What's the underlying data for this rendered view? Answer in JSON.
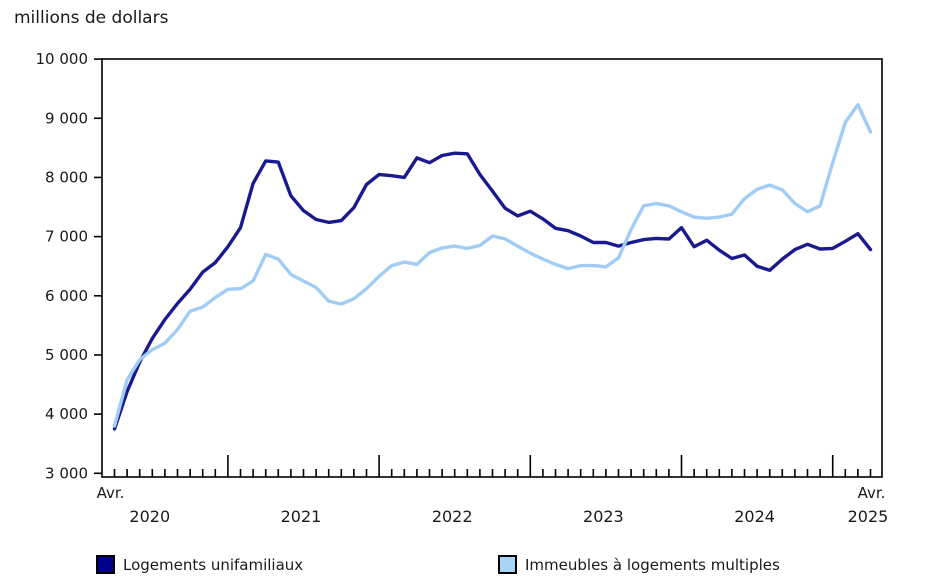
{
  "title": "millions de dollars",
  "chart_data": {
    "type": "line",
    "title": "millions de dollars",
    "x_unit": "month",
    "x_start": "2020-04",
    "x_end": "2025-04",
    "x_first_tick_label": "Avr.",
    "x_last_tick_label": "Avr.",
    "x_year_labels": [
      "2020",
      "2021",
      "2022",
      "2023",
      "2024",
      "2025"
    ],
    "ylim": [
      3000,
      10000
    ],
    "y_tick_values": [
      3000,
      4000,
      5000,
      6000,
      7000,
      8000,
      9000,
      10000
    ],
    "y_tick_labels": [
      "3 000",
      "4 000",
      "5 000",
      "6 000",
      "7 000",
      "8 000",
      "9 000",
      "10 000"
    ],
    "grid": "off",
    "legend_position": "bottom",
    "axis_color": "#000000",
    "series": [
      {
        "name": "Logements unifamiliaux",
        "color": "#1a1a8f",
        "values": [
          3750,
          4380,
          4880,
          5280,
          5600,
          5870,
          6110,
          6400,
          6560,
          6830,
          7150,
          7900,
          8280,
          8260,
          7690,
          7440,
          7290,
          7240,
          7270,
          7490,
          7880,
          8050,
          8030,
          8000,
          8330,
          8250,
          8370,
          8410,
          8400,
          8050,
          7770,
          7480,
          7350,
          7430,
          7300,
          7140,
          7100,
          7010,
          6900,
          6900,
          6840,
          6900,
          6950,
          6970,
          6960,
          7150,
          6830,
          6940,
          6770,
          6630,
          6690,
          6500,
          6430,
          6620,
          6780,
          6870,
          6790,
          6800,
          6920,
          7050,
          6780
        ]
      },
      {
        "name": "Immeubles à logements multiples",
        "color": "#a0ccf5",
        "values": [
          3800,
          4580,
          4920,
          5090,
          5200,
          5430,
          5740,
          5810,
          5970,
          6110,
          6120,
          6250,
          6700,
          6620,
          6360,
          6250,
          6140,
          5910,
          5860,
          5950,
          6120,
          6330,
          6510,
          6570,
          6530,
          6730,
          6810,
          6840,
          6800,
          6850,
          7010,
          6960,
          6840,
          6720,
          6620,
          6530,
          6460,
          6510,
          6510,
          6490,
          6640,
          7120,
          7520,
          7560,
          7520,
          7420,
          7330,
          7310,
          7330,
          7380,
          7640,
          7800,
          7870,
          7790,
          7560,
          7420,
          7520,
          8250,
          8930,
          9230,
          8770
        ]
      }
    ]
  },
  "legend": {
    "items": [
      {
        "label": "Logements unifamiliaux",
        "color": "#00008b"
      },
      {
        "label": "Immeubles à logements multiples",
        "color": "#a8d4f8"
      }
    ]
  }
}
